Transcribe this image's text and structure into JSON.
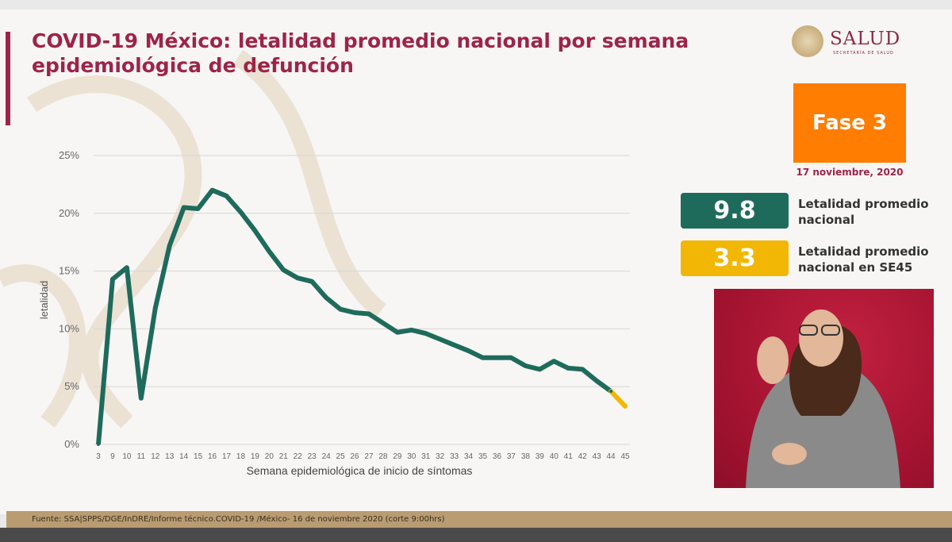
{
  "slide": {
    "title": "COVID-19 México: letalidad promedio nacional por semana epidemiológica de defunción",
    "logo_text": "SALUD",
    "logo_subtext": "SECRETARÍA DE SALUD",
    "phase": "Fase 3",
    "date": "17 noviembre, 2020",
    "footer": "Fuente: SSA|SPPS/DGE/InDRE/Informe técnico.COVID-19 /México- 16 de noviembre  2020 (corte 9:00hrs)"
  },
  "stats": [
    {
      "value": "9.8",
      "label": "Letalidad promedio nacional",
      "color": "#1e6b5c"
    },
    {
      "value": "3.3",
      "label": "Letalidad promedio nacional en SE45",
      "color": "#f2b705"
    }
  ],
  "colors": {
    "brand": "#9d2449",
    "phase": "#ff7d00",
    "line": "#1e6b5c",
    "line_last": "#f2b705"
  },
  "chart_data": {
    "type": "line",
    "title": "",
    "xlabel": "Semana epidemiológica de inicio de síntomas",
    "ylabel": "letalidad",
    "categories": [
      "3",
      "9",
      "10",
      "11",
      "12",
      "13",
      "14",
      "15",
      "16",
      "17",
      "18",
      "19",
      "20",
      "21",
      "22",
      "23",
      "24",
      "25",
      "26",
      "27",
      "28",
      "29",
      "30",
      "31",
      "32",
      "33",
      "34",
      "35",
      "36",
      "37",
      "38",
      "39",
      "40",
      "41",
      "42",
      "43",
      "44",
      "45"
    ],
    "series": [
      {
        "values": [
          0.0,
          14.3,
          15.3,
          4.0,
          11.8,
          17.2,
          20.5,
          20.4,
          22.0,
          21.5,
          20.1,
          18.5,
          16.7,
          15.1,
          14.4,
          14.1,
          12.7,
          11.7,
          11.4,
          11.3,
          10.5,
          9.7,
          9.9,
          9.6,
          9.1,
          8.6,
          8.1,
          7.5,
          7.5,
          7.5,
          6.8,
          6.5,
          7.2,
          6.6,
          6.5,
          5.5,
          4.6,
          3.3
        ]
      }
    ],
    "last_segment_color": "#f2b705",
    "yticks": [
      "0%",
      "5%",
      "10%",
      "15%",
      "20%",
      "25%"
    ],
    "ylim": [
      0,
      25
    ],
    "grid": true
  }
}
